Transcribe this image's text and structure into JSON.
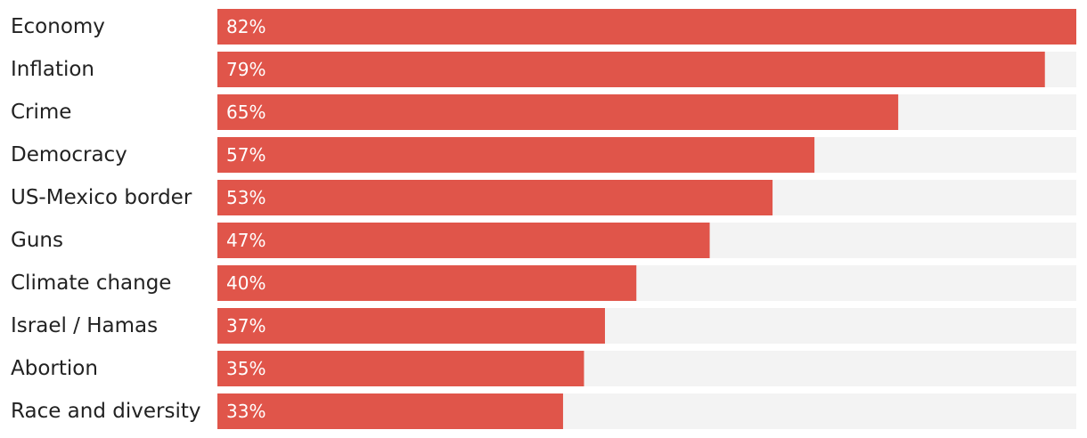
{
  "chart_data": {
    "type": "bar",
    "orientation": "horizontal",
    "categories": [
      "Economy",
      "Inflation",
      "Crime",
      "Democracy",
      "US-Mexico border",
      "Guns",
      "Climate change",
      "Israel / Hamas",
      "Abortion",
      "Race and diversity"
    ],
    "values": [
      82,
      79,
      65,
      57,
      53,
      47,
      40,
      37,
      35,
      33
    ],
    "value_labels": [
      "82%",
      "79%",
      "65%",
      "57%",
      "53%",
      "47%",
      "40%",
      "37%",
      "35%",
      "33%"
    ],
    "unit": "%",
    "xlim": [
      0,
      82
    ],
    "title": "",
    "xlabel": "",
    "ylabel": "",
    "grid": false,
    "legend": "none",
    "colors": {
      "bar": "#e0554a",
      "track": "#f3f3f3",
      "label": "#222222",
      "value_text": "#ffffff"
    }
  }
}
